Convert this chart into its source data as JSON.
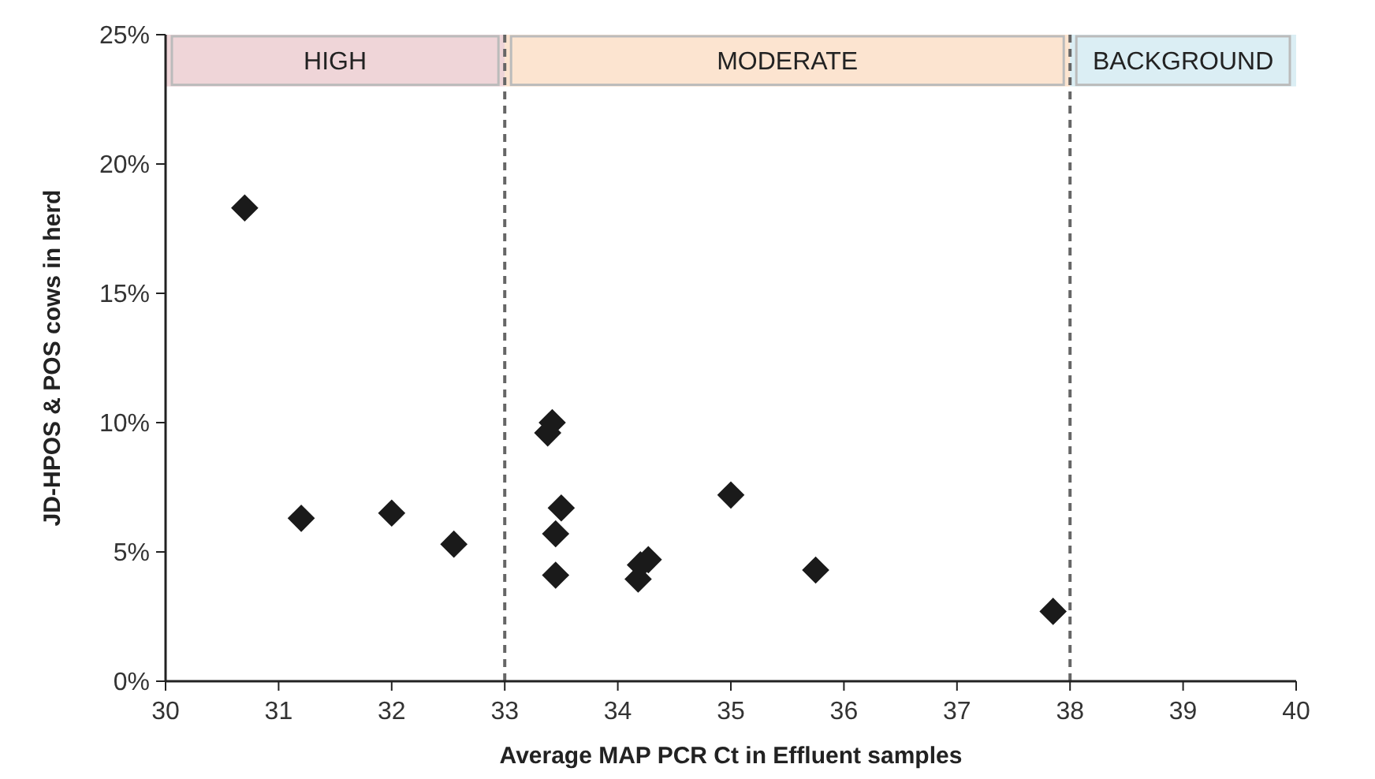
{
  "chart_data": {
    "type": "scatter",
    "xlabel": "Average MAP PCR Ct in Effluent samples",
    "ylabel": "JD-HPOS & POS cows in herd",
    "xlim": [
      30,
      40
    ],
    "xticks": [
      30,
      31,
      32,
      33,
      34,
      35,
      36,
      37,
      38,
      39,
      40
    ],
    "ylim": [
      0,
      25
    ],
    "yticks": [
      {
        "value": 0,
        "label": "0%"
      },
      {
        "value": 5,
        "label": "5%"
      },
      {
        "value": 10,
        "label": "10%"
      },
      {
        "value": 15,
        "label": "15%"
      },
      {
        "value": 20,
        "label": "20%"
      },
      {
        "value": 25,
        "label": "25%"
      }
    ],
    "grid": false,
    "marker": "diamond",
    "series": [
      {
        "color": "#1a1a1a",
        "x": [
          30.7,
          31.2,
          32.0,
          32.55,
          33.38,
          33.42,
          33.45,
          33.5,
          33.45,
          34.18,
          34.2,
          34.27,
          35.0,
          35.75,
          37.85
        ],
        "values": [
          18.3,
          6.3,
          6.5,
          5.3,
          9.6,
          10.0,
          5.7,
          6.7,
          4.1,
          3.95,
          4.5,
          4.7,
          7.2,
          4.3,
          2.7
        ]
      }
    ],
    "ref_lines": [
      {
        "axis": "x",
        "value": 33,
        "line_style": "dashed",
        "color": "#666666"
      },
      {
        "axis": "x",
        "value": 38,
        "line_style": "dashed",
        "color": "#666666"
      }
    ],
    "bands": [
      {
        "axis": "x",
        "from": 30,
        "to": 33,
        "label": "HIGH",
        "color": "#efd5d8"
      },
      {
        "axis": "x",
        "from": 33,
        "to": 38,
        "label": "MODERATE",
        "color": "#fce4d0"
      },
      {
        "axis": "x",
        "from": 38,
        "to": 40,
        "label": "BACKGROUND",
        "color": "#dbeef4"
      }
    ]
  }
}
